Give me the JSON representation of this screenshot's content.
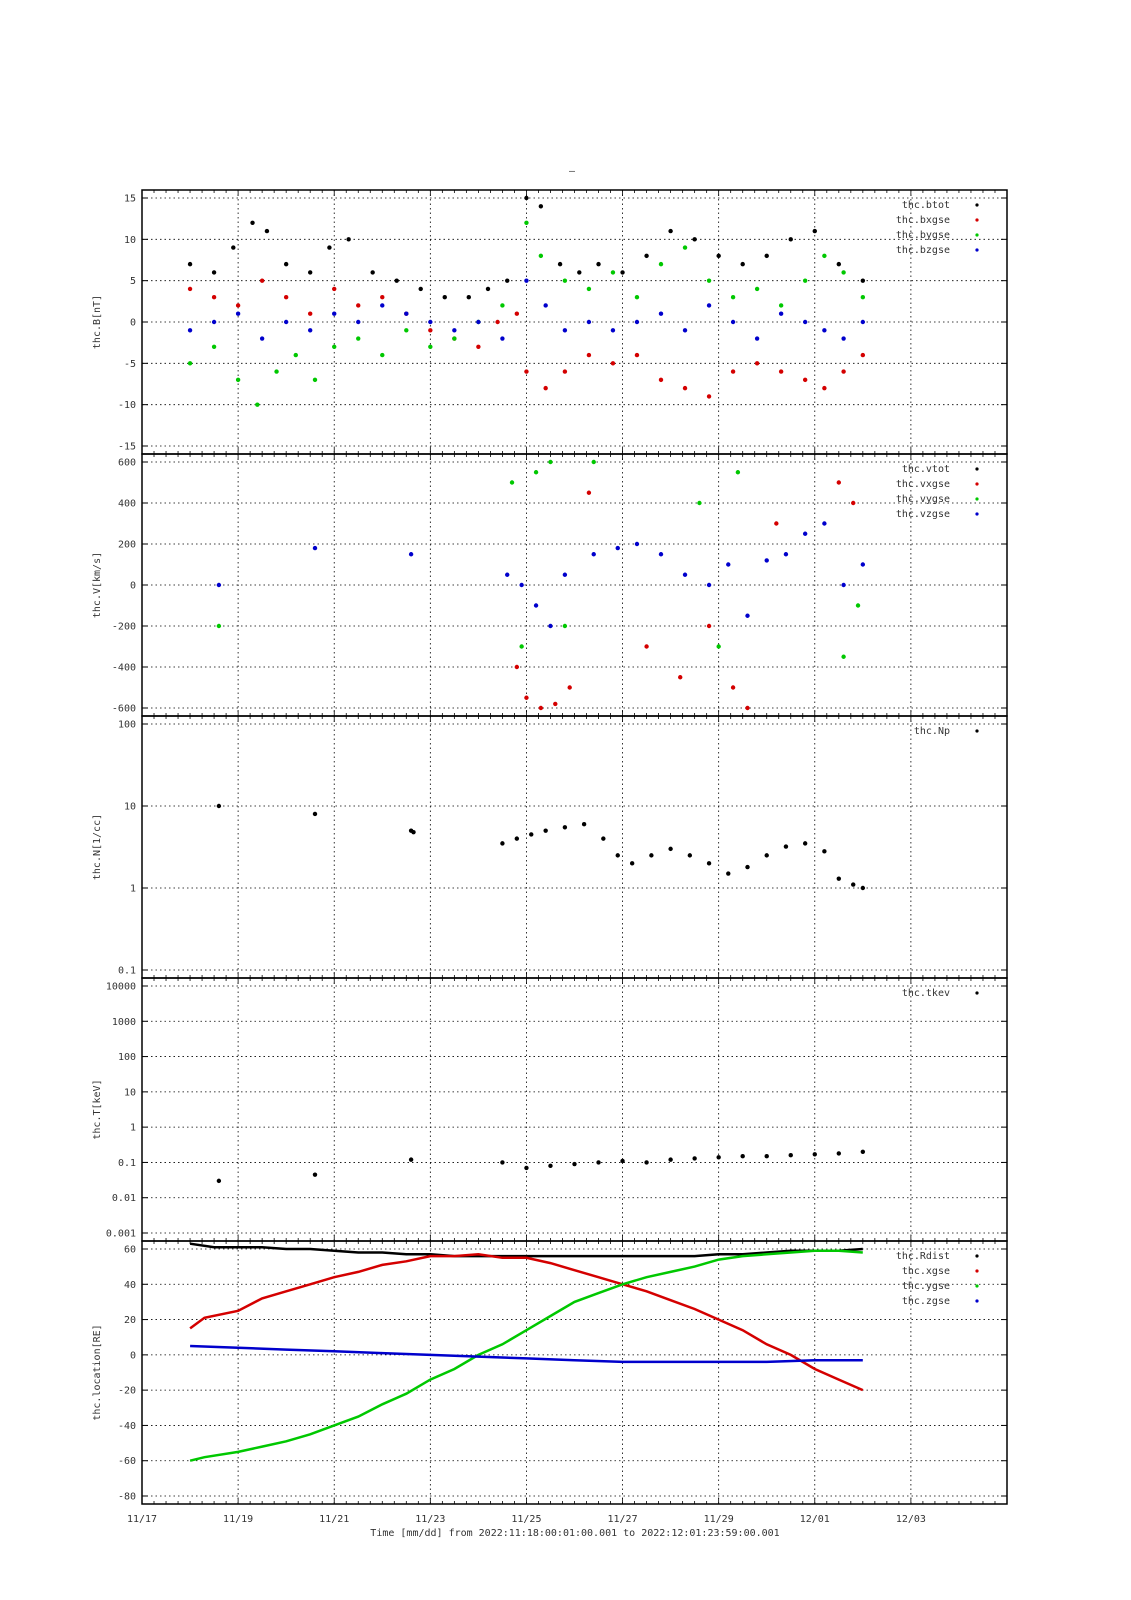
{
  "figure": {
    "title": "–",
    "x_axis": {
      "ticks": [
        "11/17",
        "11/19",
        "11/21",
        "11/23",
        "11/25",
        "11/27",
        "11/29",
        "12/01",
        "12/03"
      ],
      "label": "Time [mm/dd]  from 2022:11:18:00:01:00.001  to  2022:12:01:23:59:00.001"
    },
    "colors": {
      "black": "#000000",
      "red": "#d40000",
      "green": "#00c800",
      "blue": "#0000cc"
    }
  },
  "chart_data": [
    {
      "type": "scatter",
      "ylabel": "thc.B[nT]",
      "ylim": [
        -15,
        15
      ],
      "yticks": [
        "15",
        "10",
        "5",
        "0",
        "-5",
        "-10",
        "-15"
      ],
      "legend": [
        "thc.btot",
        "thc.bxgse",
        "thc.bygse",
        "thc.bzgse"
      ],
      "legend_placement": "top-right",
      "grid": true,
      "series": [
        {
          "name": "thc.btot",
          "color": "#000000",
          "x": [
            18.0,
            18.5,
            18.9,
            19.3,
            19.6,
            20.0,
            20.5,
            20.9,
            21.3,
            21.8,
            22.3,
            22.8,
            23.3,
            23.8,
            24.2,
            24.6,
            25.0,
            25.3,
            25.7,
            26.1,
            26.5,
            27.0,
            27.5,
            28.0,
            28.5,
            29.0,
            29.5,
            30.0,
            30.5,
            31.0,
            31.5,
            32.0
          ],
          "y": [
            7,
            6,
            9,
            12,
            11,
            7,
            6,
            9,
            10,
            6,
            5,
            4,
            3,
            3,
            4,
            5,
            15,
            14,
            7,
            6,
            7,
            6,
            8,
            11,
            10,
            8,
            7,
            8,
            10,
            11,
            7,
            5
          ]
        },
        {
          "name": "thc.bxgse",
          "color": "#d40000",
          "x": [
            18.0,
            18.5,
            19.0,
            19.5,
            20.0,
            20.5,
            21.0,
            21.5,
            22.0,
            22.5,
            23.0,
            23.5,
            24.0,
            24.4,
            24.8,
            25.0,
            25.4,
            25.8,
            26.3,
            26.8,
            27.3,
            27.8,
            28.3,
            28.8,
            29.3,
            29.8,
            30.3,
            30.8,
            31.2,
            31.6,
            32.0
          ],
          "y": [
            4,
            3,
            2,
            5,
            3,
            1,
            4,
            2,
            3,
            1,
            -1,
            -2,
            -3,
            0,
            1,
            -6,
            -8,
            -6,
            -4,
            -5,
            -4,
            -7,
            -8,
            -9,
            -6,
            -5,
            -6,
            -7,
            -8,
            -6,
            -4
          ]
        },
        {
          "name": "thc.bygse",
          "color": "#00c800",
          "x": [
            18.0,
            18.5,
            19.0,
            19.4,
            19.8,
            20.2,
            20.6,
            21.0,
            21.5,
            22.0,
            22.5,
            23.0,
            23.5,
            24.0,
            24.5,
            25.0,
            25.3,
            25.8,
            26.3,
            26.8,
            27.3,
            27.8,
            28.3,
            28.8,
            29.3,
            29.8,
            30.3,
            30.8,
            31.2,
            31.6,
            32.0
          ],
          "y": [
            -5,
            -3,
            -7,
            -10,
            -6,
            -4,
            -7,
            -3,
            -2,
            -4,
            -1,
            -3,
            -2,
            0,
            2,
            12,
            8,
            5,
            4,
            6,
            3,
            7,
            9,
            5,
            3,
            4,
            2,
            5,
            8,
            6,
            3
          ]
        },
        {
          "name": "thc.bzgse",
          "color": "#0000cc",
          "x": [
            18.0,
            18.5,
            19.0,
            19.5,
            20.0,
            20.5,
            21.0,
            21.5,
            22.0,
            22.5,
            23.0,
            23.5,
            24.0,
            24.5,
            25.0,
            25.4,
            25.8,
            26.3,
            26.8,
            27.3,
            27.8,
            28.3,
            28.8,
            29.3,
            29.8,
            30.3,
            30.8,
            31.2,
            31.6,
            32.0
          ],
          "y": [
            -1,
            0,
            1,
            -2,
            0,
            -1,
            1,
            0,
            2,
            1,
            0,
            -1,
            0,
            -2,
            5,
            2,
            -1,
            0,
            -1,
            0,
            1,
            -1,
            2,
            0,
            -2,
            1,
            0,
            -1,
            -2,
            0
          ]
        }
      ]
    },
    {
      "type": "scatter",
      "ylabel": "thc.V[km/s]",
      "ylim": [
        -600,
        600
      ],
      "yticks": [
        "600",
        "400",
        "200",
        "0",
        "-200",
        "-400",
        "-600"
      ],
      "legend": [
        "thc.vtot",
        "thc.vxgse",
        "thc.vygse",
        "thc.vzgse"
      ],
      "legend_placement": "top-right",
      "grid": true,
      "series": [
        {
          "name": "thc.vtot",
          "color": "#000000",
          "x": [],
          "y": []
        },
        {
          "name": "thc.vxgse",
          "color": "#d40000",
          "x": [
            24.8,
            25.0,
            25.3,
            25.6,
            25.9,
            26.3,
            27.5,
            28.2,
            28.8,
            29.3,
            29.6,
            30.2,
            31.5,
            31.8
          ],
          "y": [
            -400,
            -550,
            -600,
            -580,
            -500,
            450,
            -300,
            -450,
            -200,
            -500,
            -600,
            300,
            500,
            400
          ]
        },
        {
          "name": "thc.vygse",
          "color": "#00c800",
          "x": [
            18.6,
            24.7,
            24.9,
            25.2,
            25.5,
            25.8,
            26.4,
            28.6,
            29.0,
            29.4,
            31.6,
            31.9
          ],
          "y": [
            -200,
            500,
            -300,
            550,
            600,
            -200,
            600,
            400,
            -300,
            550,
            -350,
            -100
          ]
        },
        {
          "name": "thc.vzgse",
          "color": "#0000cc",
          "x": [
            18.6,
            20.6,
            22.6,
            24.6,
            24.9,
            25.2,
            25.5,
            25.8,
            26.4,
            26.9,
            27.3,
            27.8,
            28.3,
            28.8,
            29.2,
            29.6,
            30.0,
            30.4,
            30.8,
            31.2,
            31.6,
            32.0
          ],
          "y": [
            0,
            180,
            150,
            50,
            0,
            -100,
            -200,
            50,
            150,
            180,
            200,
            150,
            50,
            0,
            100,
            -150,
            120,
            150,
            250,
            300,
            0,
            100
          ]
        }
      ]
    },
    {
      "type": "scatter",
      "ylabel": "thc.N[1/cc]",
      "yscale": "log",
      "ylim": [
        0.1,
        100
      ],
      "yticks": [
        "100",
        "10",
        "1",
        "0.1"
      ],
      "legend": [
        "thc.Np"
      ],
      "legend_placement": "top-right",
      "grid": true,
      "series": [
        {
          "name": "thc.Np",
          "color": "#000000",
          "x": [
            18.6,
            20.6,
            22.6,
            22.65,
            24.5,
            24.8,
            25.1,
            25.4,
            25.8,
            26.2,
            26.6,
            26.9,
            27.2,
            27.6,
            28.0,
            28.4,
            28.8,
            29.2,
            29.6,
            30.0,
            30.4,
            30.8,
            31.2,
            31.5,
            31.8,
            32.0
          ],
          "y": [
            10,
            8,
            5,
            4.8,
            3.5,
            4,
            4.5,
            5,
            5.5,
            6,
            4,
            2.5,
            2,
            2.5,
            3,
            2.5,
            2,
            1.5,
            1.8,
            2.5,
            3.2,
            3.5,
            2.8,
            1.3,
            1.1,
            1.0
          ]
        }
      ]
    },
    {
      "type": "scatter",
      "ylabel": "thc.T[keV]",
      "yscale": "log",
      "ylim": [
        0.001,
        10000
      ],
      "yticks": [
        "10000",
        "1000",
        "100",
        "10",
        "1",
        "0.1",
        "0.01",
        "0.001"
      ],
      "legend": [
        "thc.tkev"
      ],
      "legend_placement": "top-right",
      "grid": true,
      "series": [
        {
          "name": "thc.tkev",
          "color": "#000000",
          "x": [
            18.6,
            20.6,
            22.6,
            24.5,
            25.0,
            25.5,
            26.0,
            26.5,
            27.0,
            27.5,
            28.0,
            28.5,
            29.0,
            29.5,
            30.0,
            30.5,
            31.0,
            31.5,
            32.0
          ],
          "y": [
            0.03,
            0.045,
            0.12,
            0.1,
            0.07,
            0.08,
            0.09,
            0.1,
            0.11,
            0.1,
            0.12,
            0.13,
            0.14,
            0.15,
            0.15,
            0.16,
            0.17,
            0.18,
            0.2
          ]
        }
      ]
    },
    {
      "type": "line",
      "ylabel": "thc.location[RE]",
      "ylim": [
        -80,
        60
      ],
      "yticks": [
        "60",
        "40",
        "20",
        "0",
        "-20",
        "-40",
        "-60",
        "-80"
      ],
      "legend": [
        "thc.Rdist",
        "thc.xgse",
        "thc.ygse",
        "thc.zgse"
      ],
      "legend_placement": "top-right",
      "grid": true,
      "series": [
        {
          "name": "thc.Rdist",
          "color": "#000000",
          "x": [
            18.0,
            18.5,
            19.0,
            19.5,
            20.0,
            20.5,
            21.0,
            21.5,
            22.0,
            22.5,
            23.0,
            23.5,
            24.0,
            24.5,
            25.0,
            25.5,
            26.0,
            26.5,
            27.0,
            27.5,
            28.0,
            28.5,
            29.0,
            29.5,
            30.0,
            30.5,
            31.0,
            31.5,
            32.0
          ],
          "y": [
            63,
            61,
            61,
            61,
            60,
            60,
            59,
            58,
            58,
            57,
            57,
            56,
            56,
            56,
            56,
            56,
            56,
            56,
            56,
            56,
            56,
            56,
            57,
            57,
            58,
            59,
            59,
            59,
            60
          ]
        },
        {
          "name": "thc.xgse",
          "color": "#d40000",
          "x": [
            18.0,
            18.3,
            19.0,
            19.5,
            20.0,
            20.5,
            21.0,
            21.5,
            22.0,
            22.5,
            23.0,
            23.5,
            24.0,
            24.5,
            25.0,
            25.5,
            26.0,
            26.5,
            27.0,
            27.5,
            28.0,
            28.5,
            29.0,
            29.5,
            30.0,
            30.5,
            31.0,
            31.5,
            32.0
          ],
          "y": [
            15,
            21,
            25,
            32,
            36,
            40,
            44,
            47,
            51,
            53,
            56,
            56,
            57,
            55,
            55,
            52,
            48,
            44,
            40,
            36,
            31,
            26,
            20,
            14,
            6,
            0,
            -8,
            -14,
            -20
          ]
        },
        {
          "name": "thc.ygse",
          "color": "#00c800",
          "x": [
            18.0,
            18.3,
            19.0,
            19.5,
            20.0,
            20.5,
            21.0,
            21.5,
            22.0,
            22.5,
            23.0,
            23.5,
            24.0,
            24.5,
            25.0,
            25.5,
            26.0,
            26.5,
            27.0,
            27.5,
            28.0,
            28.5,
            29.0,
            29.5,
            30.0,
            30.5,
            31.0,
            31.5,
            32.0
          ],
          "y": [
            -60,
            -58,
            -55,
            -52,
            -49,
            -45,
            -40,
            -35,
            -28,
            -22,
            -14,
            -8,
            0,
            6,
            14,
            22,
            30,
            35,
            40,
            44,
            47,
            50,
            54,
            56,
            57,
            58,
            59,
            59,
            58
          ]
        },
        {
          "name": "thc.zgse",
          "color": "#0000cc",
          "x": [
            18.0,
            19.0,
            20.0,
            21.0,
            22.0,
            23.0,
            24.0,
            25.0,
            26.0,
            27.0,
            28.0,
            29.0,
            30.0,
            31.0,
            32.0
          ],
          "y": [
            5,
            4,
            3,
            2,
            1,
            0,
            -1,
            -2,
            -3,
            -4,
            -4,
            -4,
            -4,
            -3,
            -3
          ]
        }
      ]
    }
  ]
}
